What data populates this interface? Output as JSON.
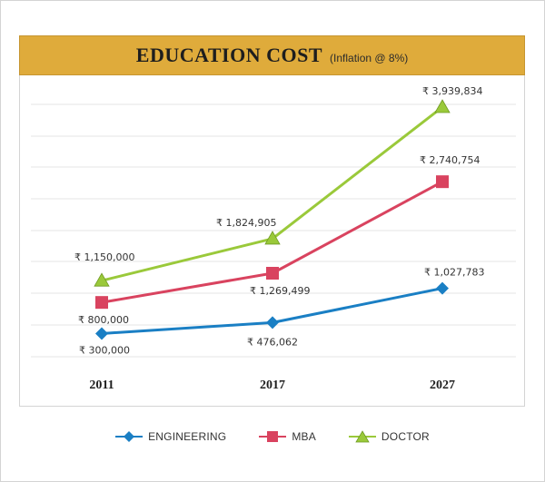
{
  "title": {
    "main": "EDUCATION COST",
    "sub": "(Inflation @ 8%)"
  },
  "colors": {
    "engineering": "#1a7fc4",
    "mba": "#d9435f",
    "doctor": "#9ac93a",
    "title_bg": "#dfab3b"
  },
  "chart_data": {
    "type": "line",
    "title": "EDUCATION COST",
    "subtitle": "(Inflation @ 8%)",
    "categories": [
      "2011",
      "2017",
      "2027"
    ],
    "series": [
      {
        "name": "ENGINEERING",
        "values": [
          300000,
          476062,
          1027783
        ],
        "labels": [
          "₹ 300,000",
          "₹ 476,062",
          "₹ 1,027,783"
        ],
        "marker": "diamond",
        "color": "#1a7fc4"
      },
      {
        "name": "MBA",
        "values": [
          800000,
          1269499,
          2740754
        ],
        "labels": [
          "₹ 800,000",
          "₹ 1,269,499",
          "₹ 2,740,754"
        ],
        "marker": "square",
        "color": "#d9435f"
      },
      {
        "name": "DOCTOR",
        "values": [
          1150000,
          1824905,
          3939834
        ],
        "labels": [
          "₹ 1,150,000",
          "₹ 1,824,905",
          "₹ 3,939,834"
        ],
        "marker": "triangle",
        "color": "#9ac93a"
      }
    ],
    "xlabel": "",
    "ylabel": "",
    "grid": true,
    "legend_position": "bottom"
  }
}
